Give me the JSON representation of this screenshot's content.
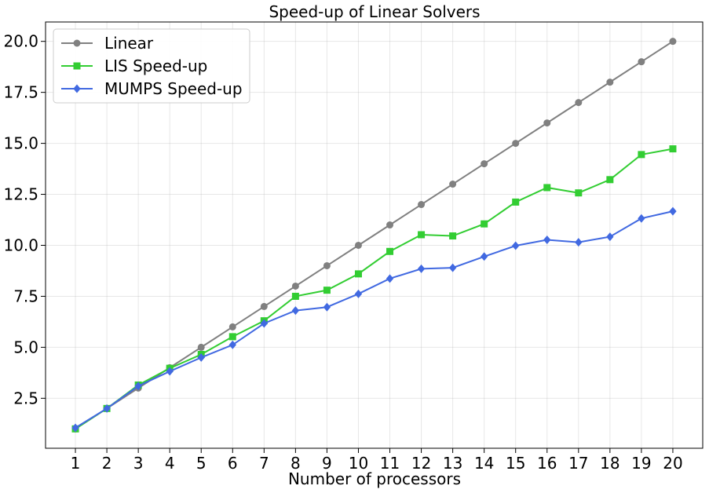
{
  "chart_data": {
    "type": "line",
    "title": "Speed-up of Linear Solvers",
    "xlabel": "Number of processors",
    "ylabel": "",
    "x": [
      1,
      2,
      3,
      4,
      5,
      6,
      7,
      8,
      9,
      10,
      11,
      12,
      13,
      14,
      15,
      16,
      17,
      18,
      19,
      20
    ],
    "xticks": [
      "1",
      "2",
      "3",
      "4",
      "5",
      "6",
      "7",
      "8",
      "9",
      "10",
      "11",
      "12",
      "13",
      "14",
      "15",
      "16",
      "17",
      "18",
      "19",
      "20"
    ],
    "yticks": [
      "2.5",
      "5.0",
      "7.5",
      "10.0",
      "12.5",
      "15.0",
      "17.5",
      "20.0"
    ],
    "ylim": [
      0.05,
      20.95
    ],
    "xlim": [
      0.05,
      20.95
    ],
    "grid": true,
    "legend_position": "top-left",
    "series": [
      {
        "name": "Linear",
        "color": "#808080",
        "marker": "circle",
        "values": [
          1,
          2,
          3,
          4,
          5,
          6,
          7,
          8,
          9,
          10,
          11,
          12,
          13,
          14,
          15,
          16,
          17,
          18,
          19,
          20
        ]
      },
      {
        "name": "LIS Speed-up",
        "color": "#32cd32",
        "marker": "square",
        "values": [
          1.0,
          2.0,
          3.15,
          3.97,
          4.65,
          5.52,
          6.3,
          7.5,
          7.8,
          8.6,
          9.7,
          10.52,
          10.46,
          11.05,
          12.12,
          12.83,
          12.57,
          13.22,
          14.45,
          14.73
        ]
      },
      {
        "name": "MUMPS Speed-up",
        "color": "#4169e1",
        "marker": "diamond",
        "values": [
          1.05,
          2.0,
          3.1,
          3.82,
          4.5,
          5.12,
          6.17,
          6.8,
          6.97,
          7.62,
          8.37,
          8.85,
          8.9,
          9.45,
          9.98,
          10.27,
          10.15,
          10.42,
          11.32,
          11.67
        ]
      }
    ]
  }
}
